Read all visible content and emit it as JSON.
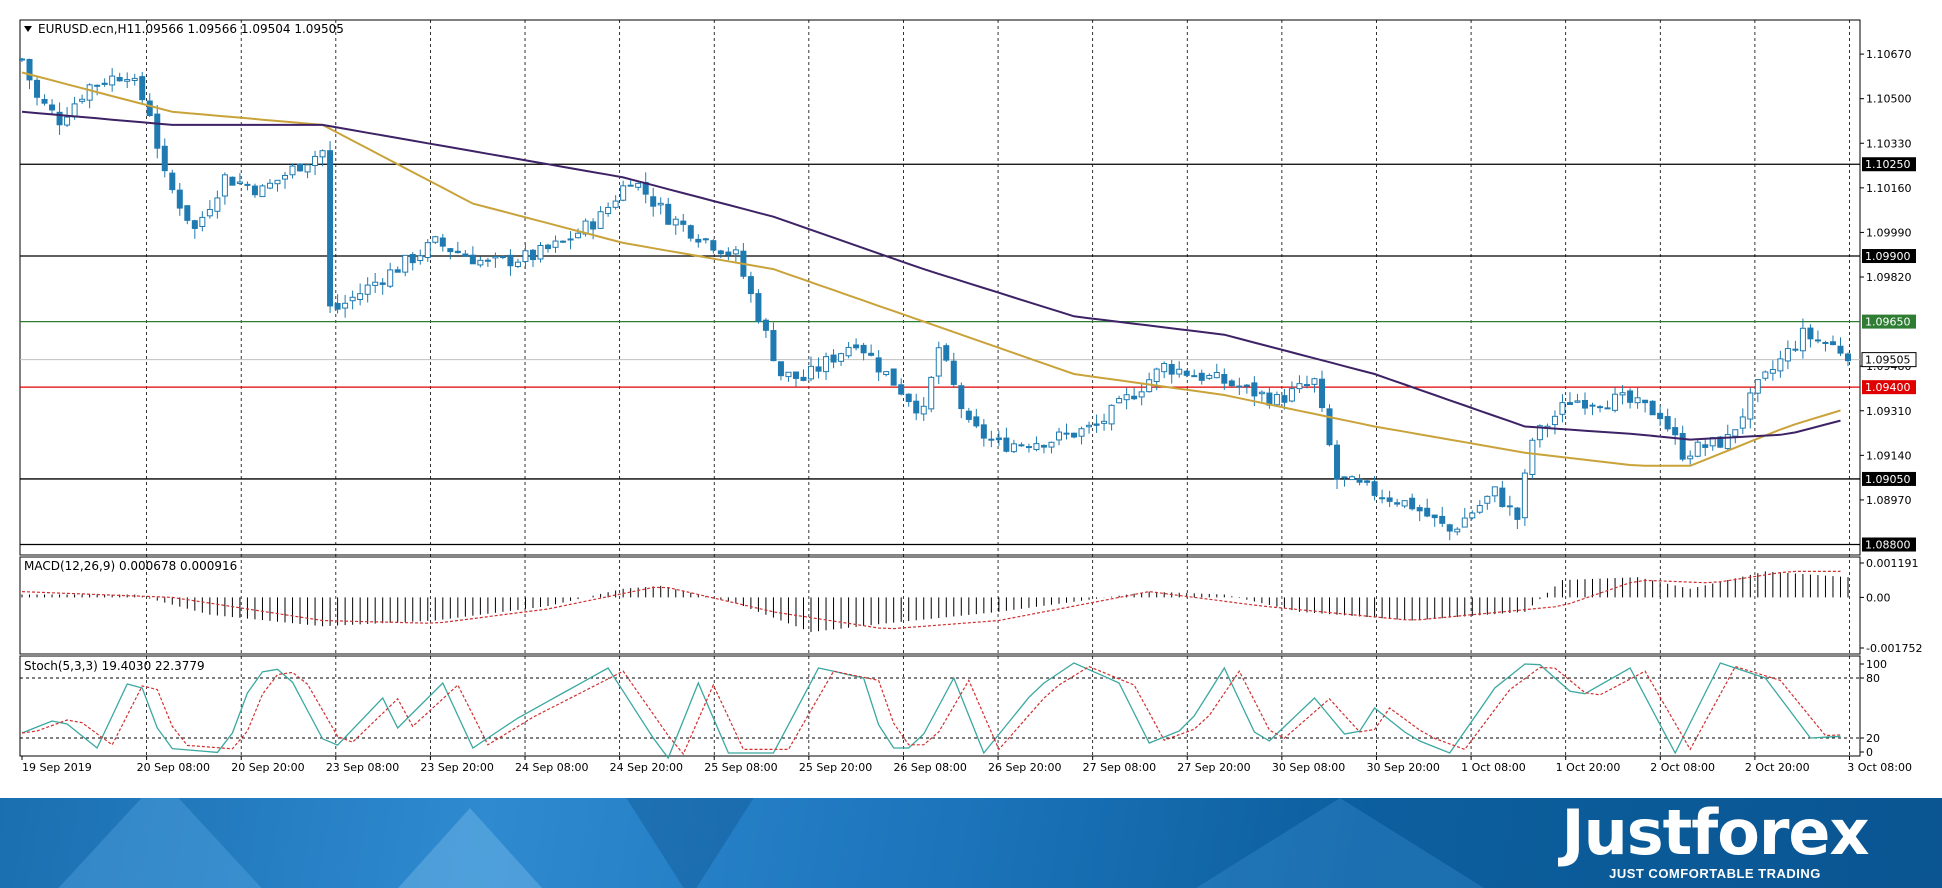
{
  "header": {
    "symbol_label": "EURUSD.ecn,H1",
    "ohlc": "1.09566 1.09566 1.09504 1.09505"
  },
  "price_axis": {
    "ticks": [
      "1.10670",
      "1.10500",
      "1.10330",
      "1.10160",
      "1.09990",
      "1.09820",
      "1.09480",
      "1.09310",
      "1.09140",
      "1.08970"
    ],
    "current_price": "1.09505"
  },
  "levels": [
    {
      "label": "1.10250",
      "price": 1.1025,
      "color": "#000000",
      "badge": "#000000"
    },
    {
      "label": "1.09900",
      "price": 1.099,
      "color": "#000000",
      "badge": "#000000"
    },
    {
      "label": "1.09650",
      "price": 1.0965,
      "color": "#2e7d32",
      "badge": "#2e7d32"
    },
    {
      "label": "1.09400",
      "price": 1.094,
      "color": "#e00000",
      "badge": "#e00000"
    },
    {
      "label": "1.09050",
      "price": 1.0905,
      "color": "#000000",
      "badge": "#000000"
    },
    {
      "label": "1.08800",
      "price": 1.088,
      "color": "#000000",
      "badge": "#000000"
    }
  ],
  "x_axis_labels": [
    "19 Sep 2019",
    "20 Sep 08:00",
    "20 Sep 20:00",
    "23 Sep 08:00",
    "23 Sep 20:00",
    "24 Sep 08:00",
    "24 Sep 20:00",
    "25 Sep 08:00",
    "25 Sep 20:00",
    "26 Sep 08:00",
    "26 Sep 20:00",
    "27 Sep 08:00",
    "27 Sep 20:00",
    "30 Sep 08:00",
    "30 Sep 20:00",
    "1 Oct 08:00",
    "1 Oct 20:00",
    "2 Oct 08:00",
    "2 Oct 20:00",
    "3 Oct 08:00"
  ],
  "macd": {
    "label": "MACD(12,26,9) 0.000678 0.000916",
    "ticks": [
      "0.001191",
      "0.00",
      "-0.001752"
    ]
  },
  "stoch": {
    "label": "Stoch(5,3,3) 19.4030 22.3779",
    "ticks": [
      "100",
      "80",
      "20",
      "0"
    ]
  },
  "colors": {
    "candle": "#1e7ab0",
    "ma_fast": "#c9a33a",
    "ma_slow": "#3d2266",
    "macd_signal": "#d03030",
    "stoch_main": "#3aa8a0",
    "stoch_signal": "#d03030"
  },
  "brand": {
    "name": "Justforex",
    "tagline": "JUST COMFORTABLE TRADING"
  },
  "chart_data": {
    "type": "candlestick",
    "title": "EURUSD.ecn,H1",
    "ohlc_last": {
      "open": 1.09566,
      "high": 1.09566,
      "low": 1.09504,
      "close": 1.09505
    },
    "ylim": [
      1.0876,
      1.108
    ],
    "close_path_anchors": [
      [
        0,
        1.1065
      ],
      [
        2,
        1.105
      ],
      [
        5,
        1.1042
      ],
      [
        9,
        1.1055
      ],
      [
        14,
        1.106
      ],
      [
        17,
        1.1045
      ],
      [
        19,
        1.102
      ],
      [
        23,
        1.1
      ],
      [
        27,
        1.102
      ],
      [
        32,
        1.1015
      ],
      [
        37,
        1.1025
      ],
      [
        40,
        1.103
      ],
      [
        41,
        1.097
      ],
      [
        42,
        1.097
      ],
      [
        47,
        1.098
      ],
      [
        55,
        1.0995
      ],
      [
        62,
        1.0987
      ],
      [
        68,
        1.099
      ],
      [
        72,
        1.0995
      ],
      [
        77,
        1.1005
      ],
      [
        81,
        1.102
      ],
      [
        86,
        1.1005
      ],
      [
        90,
        1.0998
      ],
      [
        95,
        1.099
      ],
      [
        99,
        1.096
      ],
      [
        101,
        1.0945
      ],
      [
        104,
        1.0943
      ],
      [
        111,
        1.0958
      ],
      [
        114,
        1.0948
      ],
      [
        120,
        1.093
      ],
      [
        122,
        1.0955
      ],
      [
        126,
        1.0925
      ],
      [
        130,
        1.0918
      ],
      [
        137,
        1.092
      ],
      [
        143,
        1.0925
      ],
      [
        148,
        1.0938
      ],
      [
        152,
        1.0948
      ],
      [
        160,
        1.0942
      ],
      [
        167,
        1.0935
      ],
      [
        172,
        1.0942
      ],
      [
        175,
        1.0905
      ],
      [
        180,
        1.09
      ],
      [
        185,
        1.0895
      ],
      [
        190,
        1.0885
      ],
      [
        196,
        1.09
      ],
      [
        199,
        1.089
      ],
      [
        201,
        1.092
      ],
      [
        206,
        1.0935
      ],
      [
        213,
        1.0935
      ],
      [
        218,
        1.093
      ],
      [
        221,
        1.0915
      ],
      [
        227,
        1.092
      ],
      [
        231,
        1.094
      ],
      [
        237,
        1.096
      ],
      [
        240,
        1.0957
      ],
      [
        243,
        1.0953
      ]
    ],
    "ma_fast_path": [
      [
        0,
        1.106
      ],
      [
        20,
        1.1045
      ],
      [
        40,
        1.104
      ],
      [
        60,
        1.101
      ],
      [
        80,
        1.0995
      ],
      [
        100,
        1.0985
      ],
      [
        120,
        1.0965
      ],
      [
        140,
        1.0945
      ],
      [
        160,
        1.0937
      ],
      [
        180,
        1.0925
      ],
      [
        200,
        1.0915
      ],
      [
        215,
        1.091
      ],
      [
        222,
        1.091
      ],
      [
        235,
        1.0925
      ],
      [
        243,
        1.0932
      ]
    ],
    "ma_slow_path": [
      [
        0,
        1.1045
      ],
      [
        20,
        1.104
      ],
      [
        40,
        1.104
      ],
      [
        60,
        1.103
      ],
      [
        80,
        1.102
      ],
      [
        100,
        1.1005
      ],
      [
        120,
        1.0985
      ],
      [
        140,
        1.0967
      ],
      [
        160,
        1.096
      ],
      [
        180,
        1.0945
      ],
      [
        200,
        1.0925
      ],
      [
        215,
        1.0922
      ],
      [
        222,
        1.092
      ],
      [
        235,
        1.0922
      ],
      [
        243,
        1.0928
      ]
    ],
    "candle_count": 244,
    "macd_hist_anchors": [
      [
        0,
        0.0001
      ],
      [
        15,
        0.0001
      ],
      [
        25,
        -0.0006
      ],
      [
        40,
        -0.001
      ],
      [
        55,
        -0.0008
      ],
      [
        70,
        -0.0003
      ],
      [
        80,
        0.0003
      ],
      [
        85,
        0.0004
      ],
      [
        95,
        -0.0002
      ],
      [
        105,
        -0.0012
      ],
      [
        115,
        -0.0009
      ],
      [
        130,
        -0.0005
      ],
      [
        150,
        0.0002
      ],
      [
        160,
        0.0001
      ],
      [
        170,
        -0.0005
      ],
      [
        185,
        -0.0008
      ],
      [
        200,
        -0.0005
      ],
      [
        205,
        0.0006
      ],
      [
        215,
        0.0007
      ],
      [
        222,
        0.0003
      ],
      [
        232,
        0.0009
      ],
      [
        243,
        0.0007
      ]
    ],
    "macd_signal_anchors": [
      [
        0,
        0.0002
      ],
      [
        20,
        0.0
      ],
      [
        40,
        -0.0008
      ],
      [
        55,
        -0.0009
      ],
      [
        70,
        -0.0004
      ],
      [
        85,
        0.0004
      ],
      [
        100,
        -0.0005
      ],
      [
        115,
        -0.0011
      ],
      [
        130,
        -0.0008
      ],
      [
        150,
        0.0002
      ],
      [
        165,
        -0.0003
      ],
      [
        185,
        -0.0008
      ],
      [
        205,
        -0.0003
      ],
      [
        215,
        0.0006
      ],
      [
        225,
        0.0005
      ],
      [
        235,
        0.0009
      ],
      [
        243,
        0.0009
      ]
    ],
    "stoch_main_anchors": [
      [
        0,
        25
      ],
      [
        5,
        40
      ],
      [
        10,
        10
      ],
      [
        15,
        90
      ],
      [
        19,
        10
      ],
      [
        27,
        5
      ],
      [
        31,
        85
      ],
      [
        35,
        90
      ],
      [
        41,
        5
      ],
      [
        48,
        60
      ],
      [
        50,
        30
      ],
      [
        56,
        75
      ],
      [
        60,
        10
      ],
      [
        66,
        40
      ],
      [
        72,
        65
      ],
      [
        78,
        90
      ],
      [
        84,
        20
      ],
      [
        86,
        0
      ],
      [
        90,
        75
      ],
      [
        94,
        5
      ],
      [
        100,
        5
      ],
      [
        106,
        90
      ],
      [
        112,
        80
      ],
      [
        115,
        10
      ],
      [
        119,
        10
      ],
      [
        124,
        80
      ],
      [
        128,
        5
      ],
      [
        135,
        70
      ],
      [
        140,
        95
      ],
      [
        146,
        75
      ],
      [
        150,
        15
      ],
      [
        155,
        30
      ],
      [
        160,
        90
      ],
      [
        165,
        10
      ],
      [
        172,
        60
      ],
      [
        177,
        15
      ],
      [
        180,
        50
      ],
      [
        185,
        20
      ],
      [
        190,
        5
      ],
      [
        196,
        70
      ],
      [
        201,
        100
      ],
      [
        207,
        60
      ],
      [
        214,
        90
      ],
      [
        220,
        5
      ],
      [
        226,
        95
      ],
      [
        232,
        80
      ],
      [
        238,
        20
      ],
      [
        243,
        22
      ]
    ]
  }
}
